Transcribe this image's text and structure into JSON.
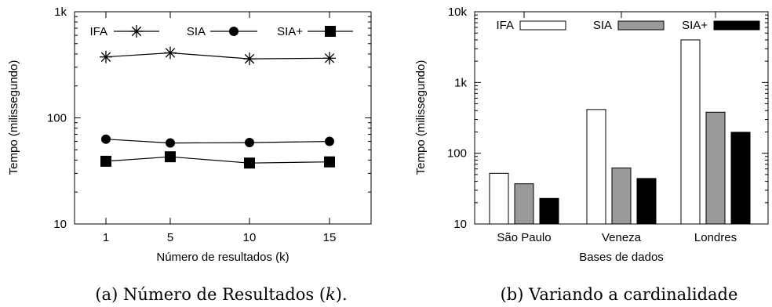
{
  "chart_data": [
    {
      "type": "line",
      "caption": {
        "prefix": "(a) Número de Resultados (",
        "var": "k",
        "suffix": ")."
      },
      "xlabel": "Número de resultados (k)",
      "ylabel": "Tempo (milissegundo)",
      "yscale": "log",
      "ylim": [
        10,
        1000
      ],
      "y_ticks": [
        {
          "value": 10,
          "label": "10"
        },
        {
          "value": 100,
          "label": "100"
        },
        {
          "value": 1000,
          "label": "1k"
        }
      ],
      "categories": [
        "1",
        "5",
        "10",
        "15"
      ],
      "legend_position": "top",
      "series": [
        {
          "name": "IFA",
          "marker": "asterisk",
          "color": "#000000",
          "values": [
            375,
            410,
            360,
            365
          ]
        },
        {
          "name": "SIA",
          "marker": "circle",
          "color": "#000000",
          "values": [
            63,
            58,
            58.5,
            60
          ]
        },
        {
          "name": "SIA+",
          "marker": "square",
          "color": "#000000",
          "values": [
            39,
            43,
            37.5,
            38.5
          ]
        }
      ]
    },
    {
      "type": "bar",
      "caption": {
        "text": "(b) Variando a cardinalidade"
      },
      "xlabel": "Bases de dados",
      "ylabel": "Tempo (milissegundo)",
      "yscale": "log",
      "ylim": [
        10,
        10000
      ],
      "y_ticks": [
        {
          "value": 10,
          "label": "10"
        },
        {
          "value": 100,
          "label": "100"
        },
        {
          "value": 1000,
          "label": "1k"
        },
        {
          "value": 10000,
          "label": "10k"
        }
      ],
      "categories": [
        "São Paulo",
        "Veneza",
        "Londres"
      ],
      "legend_position": "top",
      "series": [
        {
          "name": "IFA",
          "color": "#ffffff",
          "values": [
            52,
            415,
            4000
          ]
        },
        {
          "name": "SIA",
          "color": "#9a9a9a",
          "values": [
            37,
            62,
            380
          ]
        },
        {
          "name": "SIA+",
          "color": "#000000",
          "values": [
            23,
            44,
            198
          ]
        }
      ]
    }
  ]
}
